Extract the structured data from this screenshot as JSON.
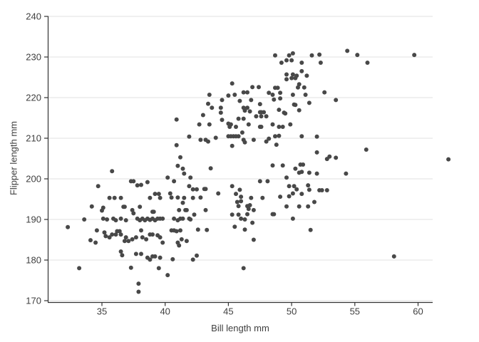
{
  "chart_data": {
    "type": "scatter",
    "title": "",
    "xlabel": "Bill length mm",
    "ylabel": "Flipper length mm",
    "x_ticks": [
      35,
      40,
      45,
      50,
      55,
      60
    ],
    "y_ticks": [
      170,
      180,
      190,
      200,
      210,
      220,
      230,
      240
    ],
    "xlim": [
      30.7,
      63.5
    ],
    "ylim": [
      170,
      240
    ],
    "grid": "horizontal-only",
    "legend": "none",
    "point_color": "#484848",
    "grid_color": "#e0e0e0",
    "axis_color": "#333333",
    "text_color": "#3f3f3f",
    "points": [
      [
        48.7,
        230.4
      ],
      [
        49.8,
        230.4
      ],
      [
        50.1,
        230.9
      ],
      [
        51.6,
        230.4
      ],
      [
        52.2,
        230.6
      ],
      [
        54.4,
        231.5
      ],
      [
        55.2,
        230.5
      ],
      [
        59.7,
        230.5
      ],
      [
        49.2,
        228.6
      ],
      [
        49.6,
        229.2
      ],
      [
        50.0,
        229.2
      ],
      [
        50.8,
        228.6
      ],
      [
        52.3,
        228.6
      ],
      [
        56.0,
        228.6
      ],
      [
        50.8,
        226.5
      ],
      [
        49.6,
        225.7
      ],
      [
        50.1,
        225.7
      ],
      [
        50.4,
        225.4
      ],
      [
        51.2,
        225.4
      ],
      [
        50.0,
        224.8
      ],
      [
        50.3,
        224.8
      ],
      [
        49.6,
        224.5
      ],
      [
        45.3,
        223.5
      ],
      [
        50.6,
        223.3
      ],
      [
        46.9,
        222.6
      ],
      [
        47.4,
        222.6
      ],
      [
        48.7,
        222.4
      ],
      [
        48.9,
        222.4
      ],
      [
        50.5,
        222.5
      ],
      [
        51.0,
        222.5
      ],
      [
        52.6,
        221.3
      ],
      [
        43.5,
        220.7
      ],
      [
        45.0,
        220.5
      ],
      [
        45.5,
        220.7
      ],
      [
        46.2,
        221.3
      ],
      [
        46.5,
        221.3
      ],
      [
        48.2,
        221.2
      ],
      [
        48.5,
        220.7
      ],
      [
        49.1,
        221.2
      ],
      [
        50.1,
        220.7
      ],
      [
        51.1,
        220.7
      ],
      [
        43.4,
        218.5
      ],
      [
        43.7,
        217.5
      ],
      [
        44.5,
        219.4
      ],
      [
        45.9,
        219.2
      ],
      [
        46.8,
        219.4
      ],
      [
        47.5,
        218.4
      ],
      [
        48.6,
        219.5
      ],
      [
        49.1,
        219.8
      ],
      [
        50.2,
        218.3
      ],
      [
        50.3,
        218.2
      ],
      [
        51.4,
        218.7
      ],
      [
        53.5,
        219.4
      ],
      [
        44.4,
        217.5
      ],
      [
        46.2,
        217.5
      ],
      [
        46.5,
        217.5
      ],
      [
        44.4,
        216.3
      ],
      [
        46.3,
        216.8
      ],
      [
        46.7,
        216.6
      ],
      [
        49.0,
        217.0
      ],
      [
        50.6,
        216.9
      ],
      [
        47.5,
        216.4
      ],
      [
        47.6,
        216.4
      ],
      [
        47.8,
        216.4
      ],
      [
        49.4,
        216.3
      ],
      [
        49.5,
        216.1
      ],
      [
        47.2,
        215.4
      ],
      [
        47.6,
        215.4
      ],
      [
        48.0,
        215.4
      ],
      [
        43.0,
        215.7
      ],
      [
        40.9,
        214.6
      ],
      [
        44.5,
        214.5
      ],
      [
        45.8,
        214.8
      ],
      [
        46.2,
        214.8
      ],
      [
        45.0,
        213.6
      ],
      [
        45.2,
        213.4
      ],
      [
        42.7,
        213.4
      ],
      [
        43.5,
        213.4
      ],
      [
        46.6,
        213.4
      ],
      [
        48.5,
        213.4
      ],
      [
        49.9,
        213.4
      ],
      [
        45.1,
        212.8
      ],
      [
        45.6,
        212.8
      ],
      [
        47.5,
        212.8
      ],
      [
        47.6,
        212.8
      ],
      [
        49.0,
        212.8
      ],
      [
        49.3,
        212.8
      ],
      [
        46.1,
        211.4
      ],
      [
        41.9,
        210.4
      ],
      [
        44.0,
        210.1
      ],
      [
        45.0,
        210.5
      ],
      [
        45.2,
        210.5
      ],
      [
        45.4,
        210.5
      ],
      [
        45.6,
        210.5
      ],
      [
        45.8,
        210.5
      ],
      [
        48.7,
        210.5
      ],
      [
        49.0,
        210.6
      ],
      [
        50.8,
        210.5
      ],
      [
        52.0,
        210.4
      ],
      [
        42.8,
        209.6
      ],
      [
        43.2,
        209.6
      ],
      [
        43.4,
        209.2
      ],
      [
        46.2,
        209.6
      ],
      [
        46.3,
        209.0
      ],
      [
        47.0,
        209.6
      ],
      [
        48.0,
        209.2
      ],
      [
        48.2,
        209.9
      ],
      [
        48.8,
        208.4
      ],
      [
        45.3,
        208.1
      ],
      [
        40.9,
        208.3
      ],
      [
        55.9,
        207.2
      ],
      [
        52.0,
        206.5
      ],
      [
        41.2,
        205.3
      ],
      [
        53.0,
        205.5
      ],
      [
        52.8,
        204.9
      ],
      [
        53.5,
        205.2
      ],
      [
        62.4,
        204.8
      ],
      [
        41.0,
        203.2
      ],
      [
        41.4,
        202.5
      ],
      [
        41.5,
        201.3
      ],
      [
        35.8,
        201.9
      ],
      [
        43.6,
        202.6
      ],
      [
        48.5,
        203.3
      ],
      [
        49.3,
        203.3
      ],
      [
        50.7,
        203.5
      ],
      [
        50.9,
        203.5
      ],
      [
        50.3,
        202.5
      ],
      [
        50.6,
        201.5
      ],
      [
        50.8,
        201.7
      ],
      [
        51.4,
        201.5
      ],
      [
        52.0,
        201.3
      ],
      [
        54.3,
        201.3
      ],
      [
        40.2,
        200.3
      ],
      [
        42.0,
        200.3
      ],
      [
        49.6,
        200.3
      ],
      [
        40.7,
        199.4
      ],
      [
        47.5,
        199.4
      ],
      [
        48.1,
        199.4
      ],
      [
        37.3,
        199.4
      ],
      [
        37.5,
        199.4
      ],
      [
        38.6,
        199.2
      ],
      [
        34.7,
        198.2
      ],
      [
        37.8,
        198.4
      ],
      [
        38.1,
        198.5
      ],
      [
        41.9,
        198.2
      ],
      [
        45.3,
        198.2
      ],
      [
        42.2,
        197.4
      ],
      [
        42.5,
        197.4
      ],
      [
        43.1,
        197.5
      ],
      [
        43.2,
        197.5
      ],
      [
        45.9,
        197.3
      ],
      [
        49.8,
        198.2
      ],
      [
        50.2,
        198.2
      ],
      [
        50.4,
        197.4
      ],
      [
        51.3,
        198.4
      ],
      [
        51.4,
        197.3
      ],
      [
        52.2,
        197.2
      ],
      [
        52.4,
        197.2
      ],
      [
        52.8,
        197.2
      ],
      [
        44.2,
        196.4
      ],
      [
        39.2,
        196.3
      ],
      [
        39.5,
        196.3
      ],
      [
        40.4,
        196.4
      ],
      [
        45.6,
        196.3
      ],
      [
        50.1,
        196.4
      ],
      [
        50.8,
        196.3
      ],
      [
        35.6,
        195.3
      ],
      [
        36.0,
        195.3
      ],
      [
        36.5,
        195.3
      ],
      [
        38.8,
        195.3
      ],
      [
        39.6,
        195.3
      ],
      [
        40.5,
        195.4
      ],
      [
        41.0,
        195.4
      ],
      [
        41.5,
        195.3
      ],
      [
        42.2,
        195.3
      ],
      [
        42.8,
        195.4
      ],
      [
        46.0,
        195.6
      ],
      [
        46.8,
        195.3
      ],
      [
        47.7,
        195.3
      ],
      [
        49.1,
        195.6
      ],
      [
        49.8,
        195.7
      ],
      [
        41.4,
        194.1
      ],
      [
        45.7,
        194.3
      ],
      [
        46.0,
        194.5
      ],
      [
        51.8,
        194.3
      ],
      [
        34.2,
        193.2
      ],
      [
        36.7,
        193.1
      ],
      [
        36.8,
        193.1
      ],
      [
        38.0,
        193.1
      ],
      [
        45.8,
        193.3
      ],
      [
        46.5,
        193.3
      ],
      [
        46.7,
        193.5
      ],
      [
        49.6,
        193.2
      ],
      [
        50.6,
        193.2
      ],
      [
        51.3,
        193.2
      ],
      [
        35.1,
        192.9
      ],
      [
        35.0,
        192.2
      ],
      [
        37.4,
        192.3
      ],
      [
        39.0,
        191.9
      ],
      [
        39.1,
        191.9
      ],
      [
        41.1,
        192.3
      ],
      [
        41.6,
        192.3
      ],
      [
        41.7,
        192.3
      ],
      [
        43.2,
        192.3
      ],
      [
        46.6,
        192.6
      ],
      [
        47.0,
        192.3
      ],
      [
        37.5,
        191.5
      ],
      [
        42.3,
        191.2
      ],
      [
        45.3,
        191.2
      ],
      [
        45.8,
        191.2
      ],
      [
        46.5,
        191.3
      ],
      [
        48.5,
        191.3
      ],
      [
        48.6,
        191.3
      ],
      [
        33.6,
        190.0
      ],
      [
        35.1,
        190.2
      ],
      [
        35.4,
        190.0
      ],
      [
        35.9,
        190.2
      ],
      [
        36.1,
        189.8
      ],
      [
        36.5,
        190.2
      ],
      [
        36.9,
        189.8
      ],
      [
        37.8,
        190.2
      ],
      [
        38.0,
        189.8
      ],
      [
        38.2,
        190.2
      ],
      [
        38.4,
        189.8
      ],
      [
        38.6,
        190.2
      ],
      [
        38.8,
        189.9
      ],
      [
        39.0,
        190.2
      ],
      [
        39.2,
        189.8
      ],
      [
        39.4,
        190.2
      ],
      [
        39.6,
        190.2
      ],
      [
        39.8,
        190.2
      ],
      [
        40.7,
        190.2
      ],
      [
        41.0,
        189.8
      ],
      [
        41.2,
        190.2
      ],
      [
        41.4,
        190.2
      ],
      [
        41.9,
        190.2
      ],
      [
        42.0,
        190.0
      ],
      [
        46.0,
        190.2
      ],
      [
        46.3,
        190.0
      ],
      [
        50.1,
        190.2
      ],
      [
        46.9,
        189.2
      ],
      [
        32.3,
        188.1
      ],
      [
        45.5,
        188.2
      ],
      [
        34.6,
        187.3
      ],
      [
        36.2,
        187.1
      ],
      [
        36.4,
        187.1
      ],
      [
        38.1,
        187.3
      ],
      [
        40.5,
        187.3
      ],
      [
        40.7,
        187.3
      ],
      [
        40.9,
        187.1
      ],
      [
        41.2,
        187.3
      ],
      [
        42.6,
        187.5
      ],
      [
        43.3,
        187.4
      ],
      [
        46.3,
        187.5
      ],
      [
        51.5,
        187.4
      ],
      [
        35.2,
        186.8
      ],
      [
        35.8,
        186.3
      ],
      [
        36.1,
        186.3
      ],
      [
        36.5,
        186.3
      ],
      [
        38.8,
        186.3
      ],
      [
        39.0,
        186.3
      ],
      [
        39.4,
        186.1
      ],
      [
        35.3,
        185.9
      ],
      [
        35.6,
        185.6
      ],
      [
        36.9,
        185.6
      ],
      [
        37.7,
        185.6
      ],
      [
        38.2,
        185.6
      ],
      [
        39.6,
        185.6
      ],
      [
        37.4,
        185.1
      ],
      [
        38.5,
        185.1
      ],
      [
        41.3,
        185.1
      ],
      [
        47.0,
        185.0
      ],
      [
        36.8,
        184.7
      ],
      [
        37.1,
        184.7
      ],
      [
        39.8,
        184.3
      ],
      [
        41.0,
        184.3
      ],
      [
        41.7,
        184.7
      ],
      [
        34.1,
        184.9
      ],
      [
        34.5,
        184.3
      ],
      [
        41.1,
        183.6
      ],
      [
        36.5,
        182.1
      ],
      [
        36.6,
        181.2
      ],
      [
        37.7,
        181.5
      ],
      [
        38.1,
        181.5
      ],
      [
        42.5,
        181.1
      ],
      [
        58.1,
        180.9
      ],
      [
        38.6,
        180.6
      ],
      [
        38.8,
        180.1
      ],
      [
        39.0,
        180.9
      ],
      [
        39.2,
        180.9
      ],
      [
        39.6,
        180.6
      ],
      [
        40.6,
        180.2
      ],
      [
        42.2,
        180.1
      ],
      [
        33.2,
        178.0
      ],
      [
        37.3,
        178.1
      ],
      [
        39.5,
        178.0
      ],
      [
        46.2,
        178.0
      ],
      [
        40.2,
        176.3
      ],
      [
        37.9,
        174.2
      ],
      [
        37.9,
        172.2
      ]
    ]
  }
}
